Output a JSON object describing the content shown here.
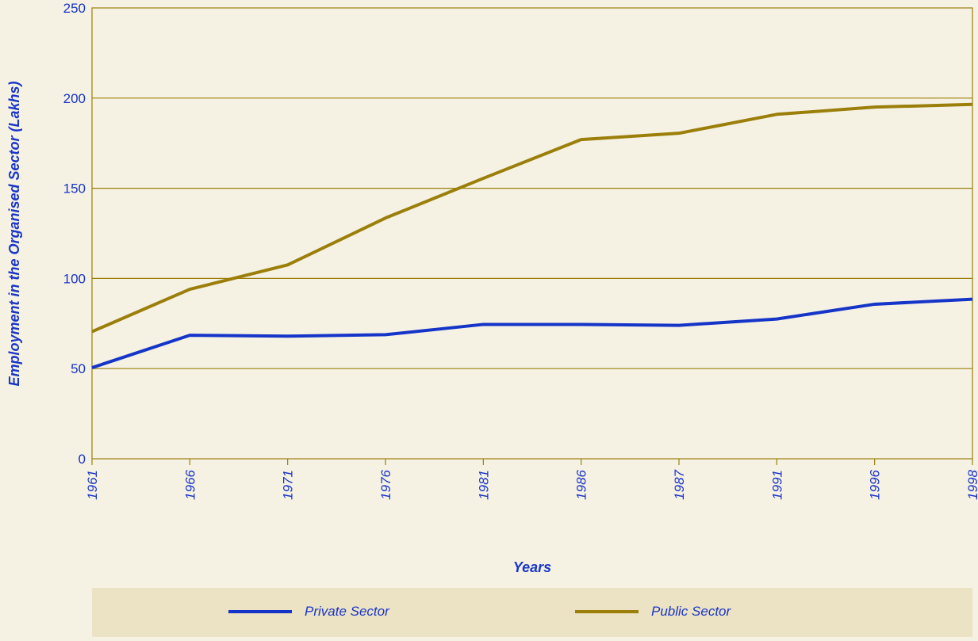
{
  "chart_data": {
    "type": "line",
    "title": "",
    "xlabel": "Years",
    "ylabel": "Employment in the Organised Sector (Lakhs)",
    "categories": [
      "1961",
      "1966",
      "1971",
      "1976",
      "1981",
      "1986",
      "1987",
      "1991",
      "1996",
      "1998"
    ],
    "ylim": [
      0,
      250
    ],
    "yticks": [
      "0",
      "50",
      "100",
      "150",
      "200",
      "250"
    ],
    "grid": true,
    "legend_position": "bottom",
    "series": [
      {
        "name": "Private Sector",
        "color": "#1535c8",
        "values": [
          50.5,
          68.5,
          68,
          68.8,
          74.5,
          74.5,
          74,
          77.5,
          85.7,
          88.5
        ]
      },
      {
        "name": "Public Sector",
        "color": "#9b7f0a",
        "values": [
          70.5,
          94,
          107.5,
          133.5,
          155.5,
          177,
          180.5,
          191,
          195,
          196.5
        ]
      }
    ]
  }
}
